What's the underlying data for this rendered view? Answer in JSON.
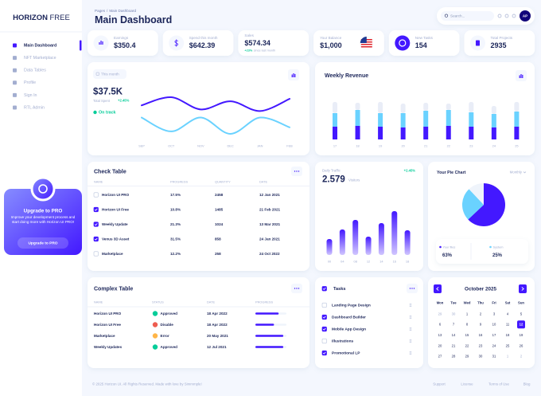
{
  "sidebar": {
    "brand": "HORIZON",
    "brand_suffix": "FREE",
    "menu": [
      "Main Dashboard",
      "NFT Marketplace",
      "Data Tables",
      "Profile",
      "Sign In",
      "RTL Admin"
    ],
    "upgrade": {
      "title": "Upgrade to PRO",
      "text": "Improve your development process and start doing more with Horizon UI PRO!",
      "button": "Upgrade to PRO"
    }
  },
  "header": {
    "breadcrumb_root": "Pages",
    "breadcrumb_separator": "/",
    "breadcrumb_current": "Main Dashboard",
    "title": "Main Dashboard",
    "search_placeholder": "Search...",
    "avatar": "AP"
  },
  "stats": [
    {
      "label": "Earnings",
      "value": "$350.4"
    },
    {
      "label": "Spend this month",
      "value": "$642.39"
    },
    {
      "label": "Sales",
      "value": "$574.34",
      "change": "+23%",
      "change_text": "since last month"
    },
    {
      "label": "Your Balance",
      "value": "$1,000"
    },
    {
      "label": "New Tasks",
      "value": "154"
    },
    {
      "label": "Total Projects",
      "value": "2935"
    }
  ],
  "spend_chart": {
    "type": "line",
    "button": "This month",
    "value": "$37.5K",
    "value_label": "Total Spent",
    "change": "+2.45%",
    "status": "On track",
    "categories": [
      "SEP",
      "OCT",
      "NOV",
      "DEC",
      "JAN",
      "FEB"
    ],
    "series": [
      {
        "color": "#4318ff",
        "values": [
          42,
          52,
          37,
          47,
          35,
          50
        ]
      },
      {
        "color": "#6ad2ff",
        "values": [
          27,
          10,
          27,
          7,
          27,
          15
        ]
      }
    ]
  },
  "weekly_revenue": {
    "type": "bar",
    "stacked": true,
    "title": "Weekly Revenue",
    "categories": [
      "17",
      "18",
      "19",
      "20",
      "21",
      "22",
      "23",
      "24",
      "25"
    ],
    "series": [
      {
        "color": "#4318ff",
        "values": [
          16,
          17,
          16,
          15,
          16,
          17,
          16,
          15,
          16
        ]
      },
      {
        "color": "#6ad2ff",
        "values": [
          17,
          20,
          17,
          18,
          20,
          20,
          18,
          17,
          19
        ]
      },
      {
        "color": "#e9edf7",
        "values": [
          14,
          9,
          14,
          12,
          10,
          8,
          13,
          10,
          12
        ]
      }
    ]
  },
  "check_table": {
    "title": "Check Table",
    "columns": [
      "NAME",
      "PROGRESS",
      "QUANTITY",
      "DATE"
    ],
    "rows": [
      [
        "Horizon UI PRO",
        "17.5%",
        "2458",
        "12 Jan 2021"
      ],
      [
        "Horizon UI Free",
        "10.8%",
        "1485",
        "21 Feb 2021"
      ],
      [
        "Weekly Update",
        "21.3%",
        "1024",
        "13 Mar 2021"
      ],
      [
        "Venus 3D Asset",
        "31.5%",
        "858",
        "24 Jan 2021"
      ],
      [
        "Marketplace",
        "12.2%",
        "258",
        "24 Oct 2022"
      ]
    ],
    "checked": [
      false,
      true,
      true,
      true,
      false
    ]
  },
  "daily_traffic": {
    "type": "bar",
    "title": "Daily Traffic",
    "value": "2.579",
    "unit": "Visitors",
    "change": "+2.45%",
    "color": "#4318ff",
    "categories": [
      "00",
      "04",
      "08",
      "12",
      "14",
      "16",
      "18"
    ],
    "values": [
      20,
      32,
      44,
      23,
      40,
      55,
      31
    ]
  },
  "pie_chart": {
    "type": "pie",
    "title": "Your Pie Chart",
    "period": "Monthly",
    "labels": [
      "Your files",
      "System",
      null
    ],
    "values": [
      63,
      25,
      12
    ],
    "value_labels": [
      "63%",
      "25%",
      null
    ],
    "colors": [
      "#4318ff",
      "#6ad2ff",
      "#eff4fb"
    ]
  },
  "complex_table": {
    "title": "Complex Table",
    "columns": [
      "NAME",
      "STATUS",
      "DATE",
      "PROGRESS"
    ],
    "rows": [
      {
        "name": "Horizon UI PRO",
        "status": "Approved",
        "status_color": "#05cd99",
        "date": "18 Apr 2022",
        "progress": 75
      },
      {
        "name": "Horizon UI Free",
        "status": "Disable",
        "status_color": "#ee5d50",
        "date": "18 Apr 2022",
        "progress": 60
      },
      {
        "name": "Marketplace",
        "status": "Error",
        "status_color": "#ffb547",
        "date": "20 May 2021",
        "progress": 90
      },
      {
        "name": "Weekly Updates",
        "status": "Approved",
        "status_color": "#05cd99",
        "date": "12 Jul 2021",
        "progress": 90
      }
    ]
  },
  "tasks": {
    "title": "Tasks",
    "items": [
      "Landing Page Design",
      "Dashboard Builder",
      "Mobile App Design",
      "Illustrations",
      "Promotional LP"
    ],
    "checked": [
      false,
      true,
      true,
      false,
      true
    ]
  },
  "calendar": {
    "month": "October 2025",
    "weekdays": [
      "Mon",
      "Tue",
      "Wed",
      "Thu",
      "Fri",
      "Sat",
      "Sun"
    ],
    "weeks": [
      [
        29,
        30,
        1,
        2,
        3,
        4,
        5
      ],
      [
        6,
        7,
        8,
        9,
        10,
        11,
        12
      ],
      [
        13,
        14,
        15,
        16,
        17,
        18,
        19
      ],
      [
        20,
        21,
        22,
        23,
        24,
        25,
        26
      ],
      [
        27,
        28,
        29,
        30,
        31,
        1,
        2
      ]
    ],
    "selected_day": 12
  },
  "footer": {
    "copyright": "© 2025 Horizon UI. All Rights Reserved. Made with love by Simmmple!",
    "links": [
      "Support",
      "License",
      "Terms of Use",
      "Blog"
    ]
  }
}
